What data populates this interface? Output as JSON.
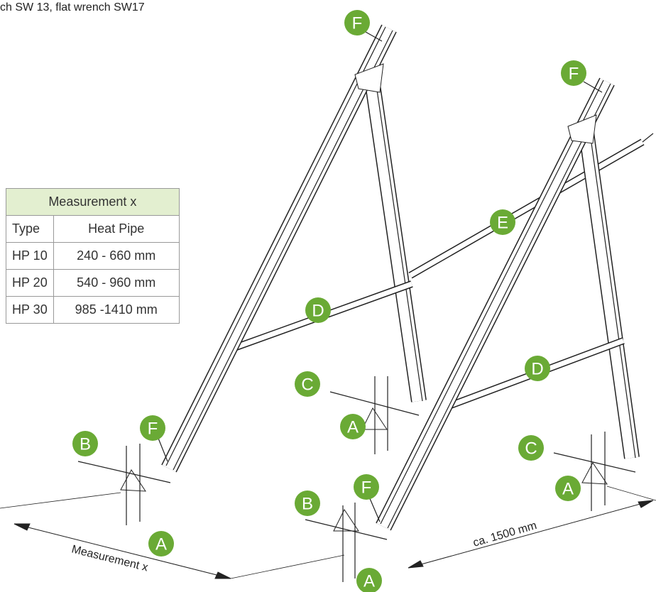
{
  "header": {
    "text": "ch SW 13, flat wrench SW17"
  },
  "table": {
    "title": "Measurement x",
    "columns": [
      "Type",
      "Heat Pipe"
    ],
    "rows": [
      [
        "HP 10",
        "240 - 660 mm"
      ],
      [
        "HP 20",
        "540 - 960 mm"
      ],
      [
        "HP 30",
        "985 -1410 mm"
      ]
    ]
  },
  "callouts": [
    "F",
    "F",
    "E",
    "D",
    "D",
    "C",
    "C",
    "B",
    "B",
    "F",
    "F",
    "A",
    "A",
    "A",
    "A"
  ],
  "dimensions": [
    "Measurement x",
    "ca. 1500 mm"
  ]
}
